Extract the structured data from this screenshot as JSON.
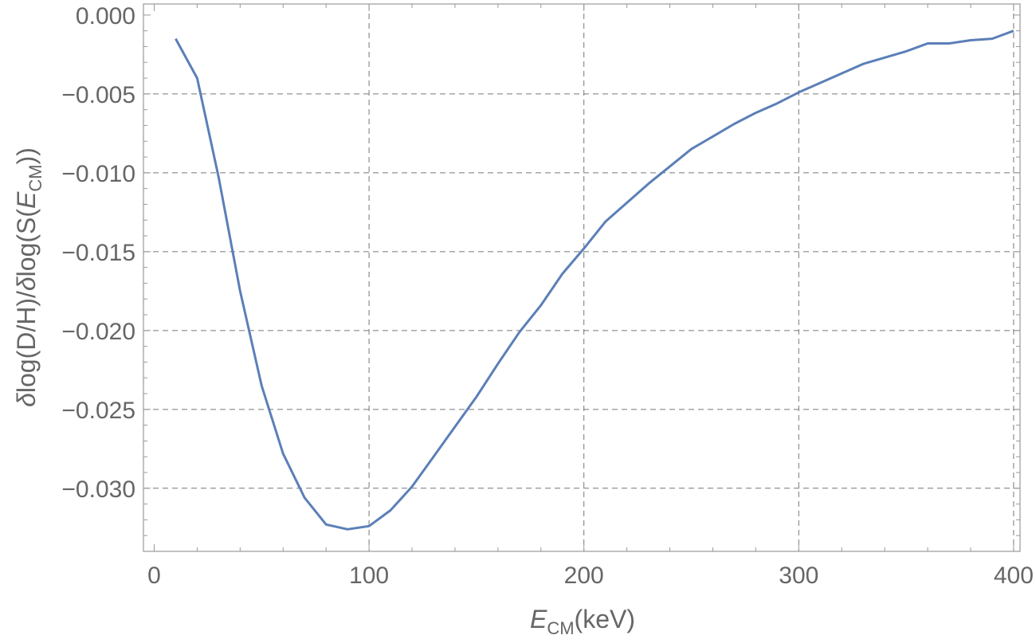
{
  "chart_data": {
    "type": "line",
    "xlabel": "E_CM(keV)",
    "ylabel": "δlog(D/H)/δlog(S(E_CM))",
    "xlim": [
      -5,
      403
    ],
    "ylim": [
      -0.034,
      0.0007
    ],
    "x_ticks": [
      "0",
      "100",
      "200",
      "300",
      "400"
    ],
    "y_ticks": [
      "0.000",
      "−0.005",
      "−0.010",
      "−0.015",
      "−0.020",
      "−0.025",
      "−0.030"
    ],
    "grid": true,
    "series_color": "#5b7fb8",
    "series": [
      {
        "x": [
          10,
          20,
          30,
          40,
          50,
          60,
          70,
          80,
          90,
          100,
          110,
          120,
          130,
          140,
          150,
          160,
          170,
          180,
          190,
          200,
          210,
          220,
          230,
          240,
          250,
          260,
          270,
          280,
          290,
          300,
          310,
          320,
          330,
          340,
          350,
          360,
          370,
          380,
          390,
          400
        ],
        "values": [
          -0.0015,
          -0.004,
          -0.0103,
          -0.0175,
          -0.0235,
          -0.0278,
          -0.0306,
          -0.0323,
          -0.0326,
          -0.0324,
          -0.0314,
          -0.0299,
          -0.028,
          -0.0261,
          -0.0242,
          -0.0221,
          -0.0201,
          -0.0184,
          -0.0164,
          -0.0148,
          -0.0131,
          -0.0119,
          -0.0107,
          -0.0096,
          -0.0085,
          -0.0077,
          -0.0069,
          -0.0062,
          -0.0056,
          -0.0049,
          -0.0043,
          -0.0037,
          -0.0031,
          -0.0027,
          -0.0023,
          -0.0018,
          -0.0018,
          -0.0016,
          -0.0015,
          -0.001
        ]
      }
    ]
  }
}
